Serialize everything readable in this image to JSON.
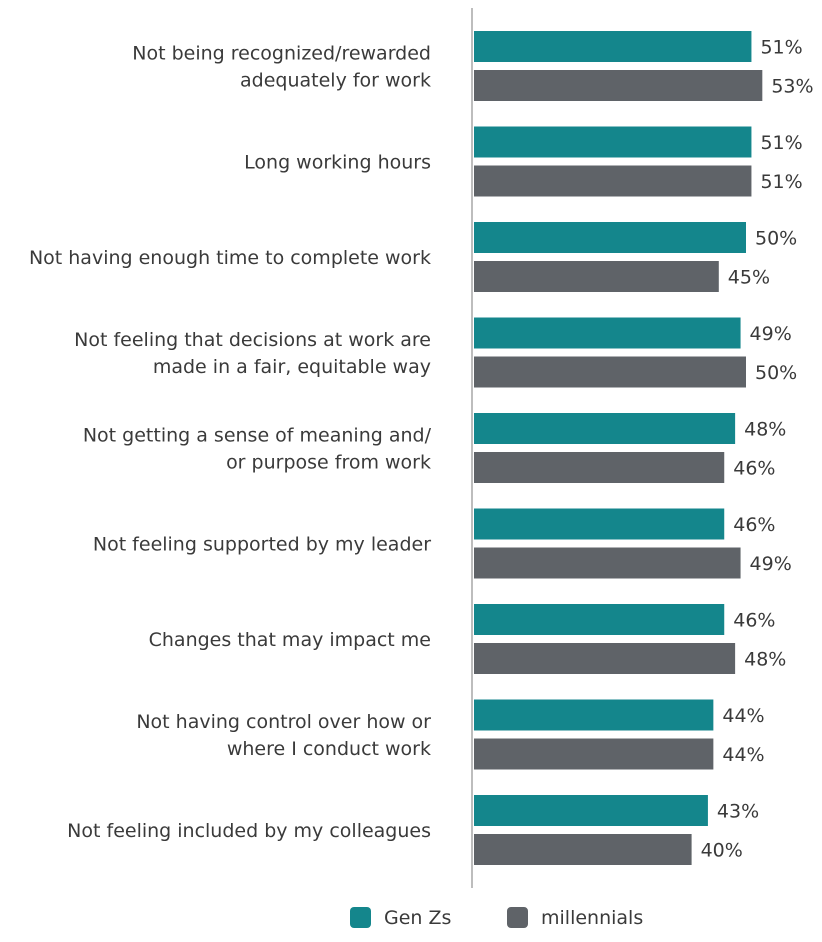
{
  "chart_data": {
    "type": "bar",
    "orientation": "horizontal",
    "categories": [
      [
        "Not being recognized/rewarded",
        "adequately for work"
      ],
      [
        "Long working hours"
      ],
      [
        "Not having enough time to complete work"
      ],
      [
        "Not feeling that decisions at work are",
        "made in a fair, equitable way"
      ],
      [
        "Not getting a sense of meaning and/",
        "or purpose from work"
      ],
      [
        "Not feeling supported by my leader"
      ],
      [
        "Changes  that may impact me"
      ],
      [
        "Not having control over how or",
        "where I conduct work"
      ],
      [
        "Not feeling included by my colleagues"
      ]
    ],
    "series": [
      {
        "name": "Gen Zs",
        "color": "#14868c",
        "values": [
          51,
          51,
          50,
          49,
          48,
          46,
          46,
          44,
          43
        ]
      },
      {
        "name": "millennials",
        "color": "#5f6368",
        "values": [
          53,
          51,
          45,
          50,
          46,
          49,
          48,
          44,
          40
        ]
      }
    ],
    "value_suffix": "%",
    "legend_position": "bottom-center",
    "grid": false
  }
}
